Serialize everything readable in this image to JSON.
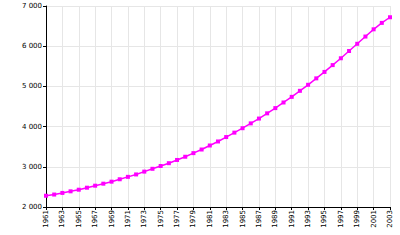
{
  "chart_data": {
    "type": "line",
    "x": [
      1961,
      1962,
      1963,
      1964,
      1965,
      1966,
      1967,
      1968,
      1969,
      1970,
      1971,
      1972,
      1973,
      1974,
      1975,
      1976,
      1977,
      1978,
      1979,
      1980,
      1981,
      1982,
      1983,
      1984,
      1985,
      1986,
      1987,
      1988,
      1989,
      1990,
      1991,
      1992,
      1993,
      1994,
      1995,
      1996,
      1997,
      1998,
      1999,
      2000,
      2001,
      2002,
      2003
    ],
    "values": [
      2280,
      2310,
      2350,
      2390,
      2430,
      2480,
      2530,
      2580,
      2630,
      2690,
      2750,
      2810,
      2880,
      2950,
      3020,
      3090,
      3170,
      3250,
      3340,
      3430,
      3530,
      3630,
      3740,
      3850,
      3960,
      4080,
      4200,
      4330,
      4460,
      4600,
      4740,
      4890,
      5040,
      5200,
      5360,
      5530,
      5700,
      5880,
      6060,
      6240,
      6420,
      6580,
      6720
    ],
    "color": "#ff00ff",
    "marker": "square",
    "xlim": [
      1961,
      2003
    ],
    "xticks": [
      1961,
      1963,
      1965,
      1967,
      1969,
      1971,
      1973,
      1975,
      1977,
      1979,
      1981,
      1983,
      1985,
      1987,
      1989,
      1991,
      1993,
      1995,
      1997,
      1999,
      2001,
      2003
    ],
    "ylim": [
      2000,
      7000
    ],
    "yticks": [
      {
        "value": 2000,
        "label": "2 000"
      },
      {
        "value": 3000,
        "label": "3 000"
      },
      {
        "value": 4000,
        "label": "4 000"
      },
      {
        "value": 5000,
        "label": "5 000"
      },
      {
        "value": 6000,
        "label": "6 000"
      },
      {
        "value": 7000,
        "label": "7 000"
      }
    ],
    "grid": true
  }
}
